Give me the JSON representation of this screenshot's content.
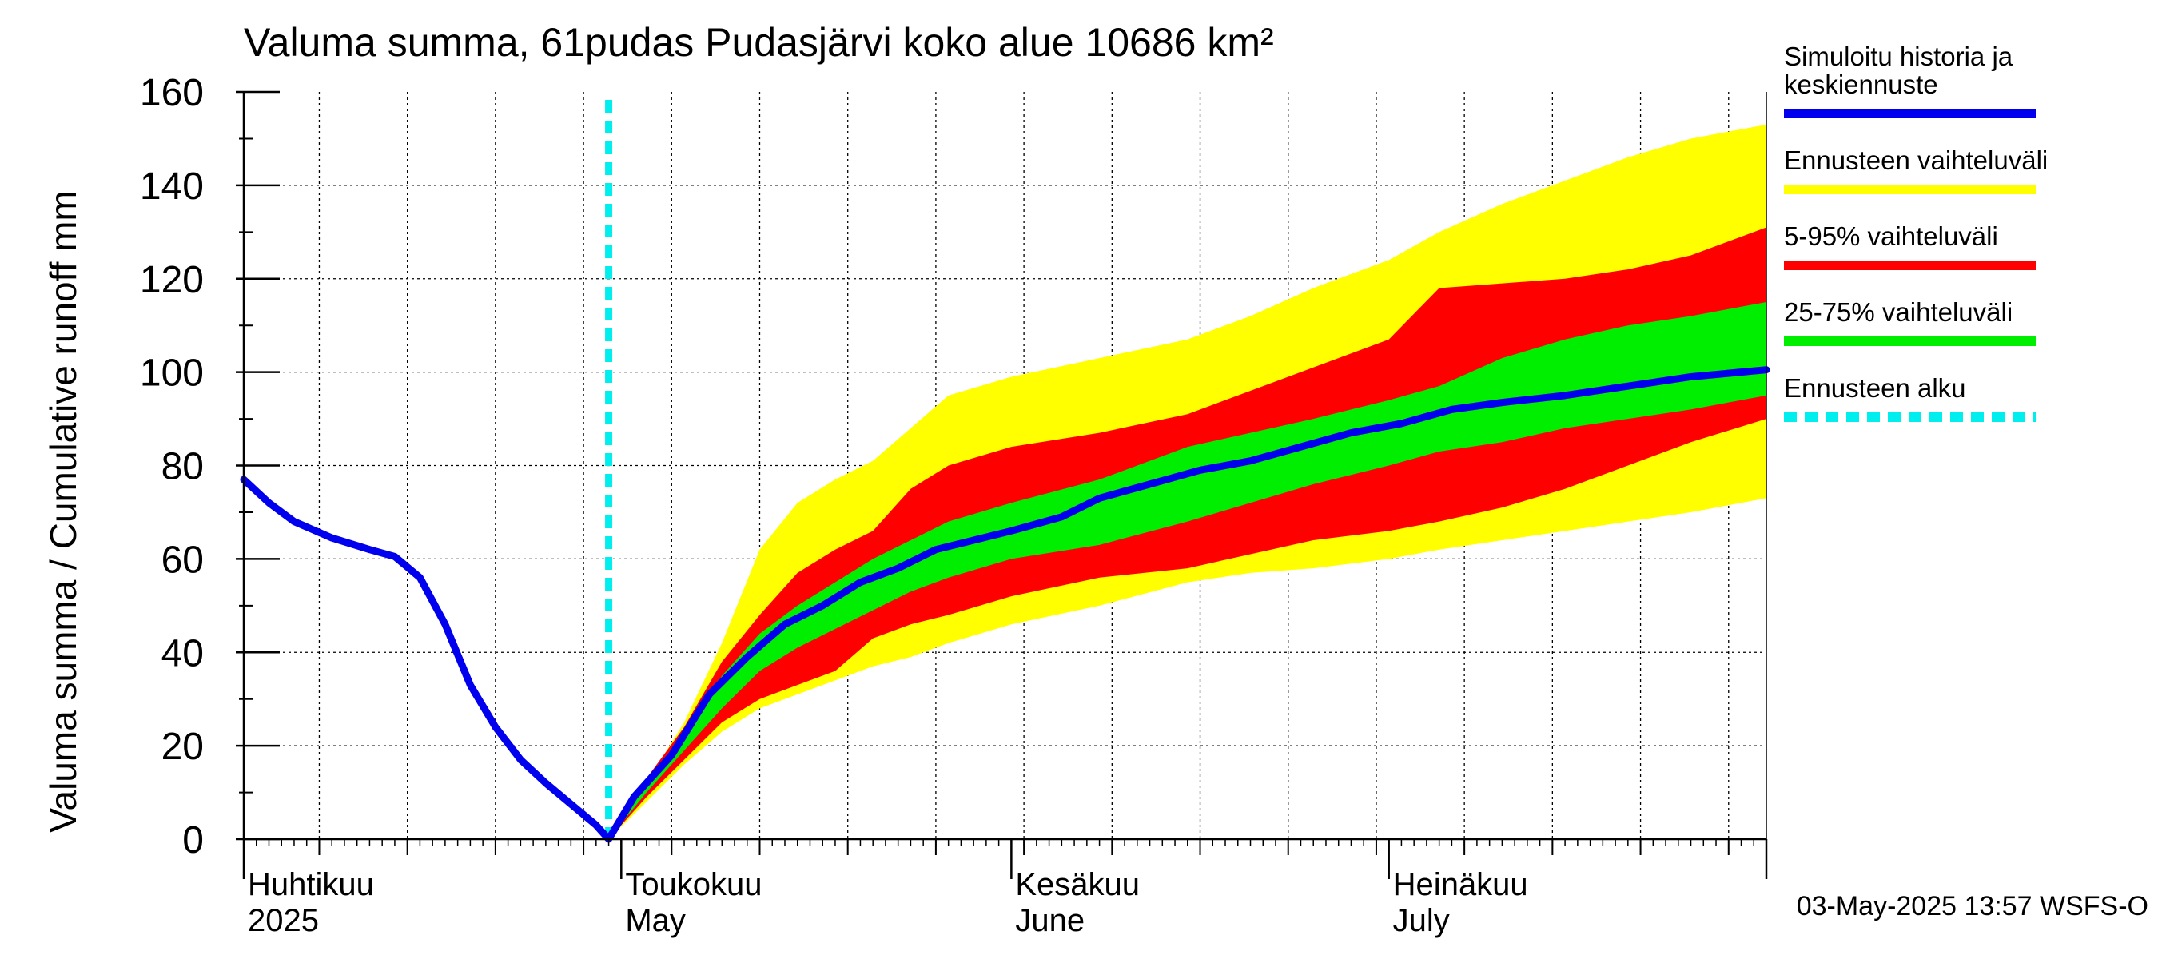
{
  "chart_data": {
    "type": "area",
    "title": "Valuma summa, 61pudas Pudasjärvi koko alue 10686 km²",
    "ylabel": "Valuma summa / Cumulative runoff    mm",
    "ylim": [
      0,
      160
    ],
    "xlim": [
      "2025-04-01",
      "2025-07-31"
    ],
    "y_ticks": [
      0,
      20,
      40,
      60,
      80,
      100,
      120,
      140,
      160
    ],
    "month_ticks": [
      {
        "date": "2025-04-01",
        "fi": "Huhtikuu",
        "en": "2025"
      },
      {
        "date": "2025-05-01",
        "fi": "Toukokuu",
        "en": "May"
      },
      {
        "date": "2025-06-01",
        "fi": "Kesäkuu",
        "en": "June"
      },
      {
        "date": "2025-07-01",
        "fi": "Heinäkuu",
        "en": "July"
      }
    ],
    "grid": true,
    "legend_position": "right",
    "legend": [
      {
        "label": "Simuloitu historia ja keskiennuste",
        "color": "#0000ee",
        "style": "solid"
      },
      {
        "label": "Ennusteen vaihteluväli",
        "color": "#ffff00",
        "style": "solid"
      },
      {
        "label": "5-95% vaihteluväli",
        "color": "#ff0000",
        "style": "solid"
      },
      {
        "label": "25-75% vaihteluväli",
        "color": "#00ee00",
        "style": "solid"
      },
      {
        "label": "Ennusteen alku",
        "color": "#00eeee",
        "style": "dashed"
      }
    ],
    "forecast_start": "2025-04-30",
    "timestamp": "03-May-2025 13:57 WSFS-O",
    "history": [
      [
        "2025-04-01",
        77
      ],
      [
        "2025-04-03",
        72
      ],
      [
        "2025-04-05",
        68
      ],
      [
        "2025-04-08",
        64.5
      ],
      [
        "2025-04-11",
        62
      ],
      [
        "2025-04-13",
        60.5
      ],
      [
        "2025-04-15",
        56
      ],
      [
        "2025-04-17",
        46
      ],
      [
        "2025-04-19",
        33
      ],
      [
        "2025-04-21",
        24
      ],
      [
        "2025-04-23",
        17
      ],
      [
        "2025-04-25",
        12
      ],
      [
        "2025-04-27",
        7.5
      ],
      [
        "2025-04-29",
        3
      ],
      [
        "2025-04-30",
        0
      ]
    ],
    "median": [
      [
        "2025-04-30",
        0
      ],
      [
        "2025-05-02",
        9
      ],
      [
        "2025-05-05",
        18
      ],
      [
        "2025-05-08",
        31
      ],
      [
        "2025-05-11",
        39
      ],
      [
        "2025-05-14",
        46
      ],
      [
        "2025-05-17",
        50
      ],
      [
        "2025-05-20",
        55
      ],
      [
        "2025-05-23",
        58
      ],
      [
        "2025-05-26",
        62
      ],
      [
        "2025-05-29",
        64
      ],
      [
        "2025-06-01",
        66
      ],
      [
        "2025-06-05",
        69
      ],
      [
        "2025-06-08",
        73
      ],
      [
        "2025-06-12",
        76
      ],
      [
        "2025-06-16",
        79
      ],
      [
        "2025-06-20",
        81
      ],
      [
        "2025-06-24",
        84
      ],
      [
        "2025-06-28",
        87
      ],
      [
        "2025-07-02",
        89
      ],
      [
        "2025-07-06",
        92
      ],
      [
        "2025-07-10",
        93.5
      ],
      [
        "2025-07-15",
        95
      ],
      [
        "2025-07-20",
        97
      ],
      [
        "2025-07-25",
        99
      ],
      [
        "2025-07-31",
        100.5
      ]
    ],
    "bands": {
      "full_upper": [
        [
          "2025-04-30",
          0
        ],
        [
          "2025-05-03",
          12
        ],
        [
          "2025-05-06",
          25
        ],
        [
          "2025-05-09",
          42
        ],
        [
          "2025-05-12",
          62
        ],
        [
          "2025-05-15",
          72
        ],
        [
          "2025-05-18",
          77
        ],
        [
          "2025-05-21",
          81
        ],
        [
          "2025-05-24",
          88
        ],
        [
          "2025-05-27",
          95
        ],
        [
          "2025-06-01",
          99
        ],
        [
          "2025-06-08",
          103
        ],
        [
          "2025-06-15",
          107
        ],
        [
          "2025-06-20",
          112
        ],
        [
          "2025-06-25",
          118
        ],
        [
          "2025-07-01",
          124
        ],
        [
          "2025-07-05",
          130
        ],
        [
          "2025-07-10",
          136
        ],
        [
          "2025-07-15",
          141
        ],
        [
          "2025-07-20",
          146
        ],
        [
          "2025-07-25",
          150
        ],
        [
          "2025-07-31",
          153
        ]
      ],
      "p95": [
        [
          "2025-04-30",
          0
        ],
        [
          "2025-05-03",
          13
        ],
        [
          "2025-05-06",
          24
        ],
        [
          "2025-05-09",
          38
        ],
        [
          "2025-05-12",
          48
        ],
        [
          "2025-05-15",
          57
        ],
        [
          "2025-05-18",
          62
        ],
        [
          "2025-05-21",
          66
        ],
        [
          "2025-05-24",
          75
        ],
        [
          "2025-05-27",
          80
        ],
        [
          "2025-06-01",
          84
        ],
        [
          "2025-06-08",
          87
        ],
        [
          "2025-06-15",
          91
        ],
        [
          "2025-06-20",
          96
        ],
        [
          "2025-06-25",
          101
        ],
        [
          "2025-07-01",
          107
        ],
        [
          "2025-07-05",
          118
        ],
        [
          "2025-07-10",
          119
        ],
        [
          "2025-07-15",
          120
        ],
        [
          "2025-07-20",
          122
        ],
        [
          "2025-07-25",
          125
        ],
        [
          "2025-07-31",
          131
        ]
      ],
      "p75": [
        [
          "2025-04-30",
          0
        ],
        [
          "2025-05-03",
          12
        ],
        [
          "2025-05-06",
          22
        ],
        [
          "2025-05-09",
          35
        ],
        [
          "2025-05-12",
          44
        ],
        [
          "2025-05-15",
          50
        ],
        [
          "2025-05-18",
          55
        ],
        [
          "2025-05-21",
          60
        ],
        [
          "2025-05-24",
          64
        ],
        [
          "2025-05-27",
          68
        ],
        [
          "2025-06-01",
          72
        ],
        [
          "2025-06-08",
          77
        ],
        [
          "2025-06-15",
          84
        ],
        [
          "2025-06-20",
          87
        ],
        [
          "2025-06-25",
          90
        ],
        [
          "2025-07-01",
          94
        ],
        [
          "2025-07-05",
          97
        ],
        [
          "2025-07-10",
          103
        ],
        [
          "2025-07-15",
          107
        ],
        [
          "2025-07-20",
          110
        ],
        [
          "2025-07-25",
          112
        ],
        [
          "2025-07-31",
          115
        ]
      ],
      "p25": [
        [
          "2025-04-30",
          0
        ],
        [
          "2025-05-03",
          10
        ],
        [
          "2025-05-06",
          19
        ],
        [
          "2025-05-09",
          28
        ],
        [
          "2025-05-12",
          36
        ],
        [
          "2025-05-15",
          41
        ],
        [
          "2025-05-18",
          45
        ],
        [
          "2025-05-21",
          49
        ],
        [
          "2025-05-24",
          53
        ],
        [
          "2025-05-27",
          56
        ],
        [
          "2025-06-01",
          60
        ],
        [
          "2025-06-08",
          63
        ],
        [
          "2025-06-15",
          68
        ],
        [
          "2025-06-20",
          72
        ],
        [
          "2025-06-25",
          76
        ],
        [
          "2025-07-01",
          80
        ],
        [
          "2025-07-05",
          83
        ],
        [
          "2025-07-10",
          85
        ],
        [
          "2025-07-15",
          88
        ],
        [
          "2025-07-20",
          90
        ],
        [
          "2025-07-25",
          92
        ],
        [
          "2025-07-31",
          95
        ]
      ],
      "p5": [
        [
          "2025-04-30",
          0
        ],
        [
          "2025-05-03",
          9
        ],
        [
          "2025-05-06",
          17
        ],
        [
          "2025-05-09",
          25
        ],
        [
          "2025-05-12",
          30
        ],
        [
          "2025-05-15",
          33
        ],
        [
          "2025-05-18",
          36
        ],
        [
          "2025-05-21",
          43
        ],
        [
          "2025-05-24",
          46
        ],
        [
          "2025-05-27",
          48
        ],
        [
          "2025-06-01",
          52
        ],
        [
          "2025-06-08",
          56
        ],
        [
          "2025-06-15",
          58
        ],
        [
          "2025-06-20",
          61
        ],
        [
          "2025-06-25",
          64
        ],
        [
          "2025-07-01",
          66
        ],
        [
          "2025-07-05",
          68
        ],
        [
          "2025-07-10",
          71
        ],
        [
          "2025-07-15",
          75
        ],
        [
          "2025-07-20",
          80
        ],
        [
          "2025-07-25",
          85
        ],
        [
          "2025-07-31",
          90
        ]
      ],
      "full_lower": [
        [
          "2025-04-30",
          0
        ],
        [
          "2025-05-03",
          8
        ],
        [
          "2025-05-06",
          16
        ],
        [
          "2025-05-09",
          23
        ],
        [
          "2025-05-12",
          28
        ],
        [
          "2025-05-15",
          31
        ],
        [
          "2025-05-18",
          34
        ],
        [
          "2025-05-21",
          37
        ],
        [
          "2025-05-24",
          39
        ],
        [
          "2025-05-27",
          42
        ],
        [
          "2025-06-01",
          46
        ],
        [
          "2025-06-08",
          50
        ],
        [
          "2025-06-15",
          55
        ],
        [
          "2025-06-20",
          57
        ],
        [
          "2025-06-25",
          58
        ],
        [
          "2025-07-01",
          60
        ],
        [
          "2025-07-05",
          62
        ],
        [
          "2025-07-10",
          64
        ],
        [
          "2025-07-15",
          66
        ],
        [
          "2025-07-20",
          68
        ],
        [
          "2025-07-25",
          70
        ],
        [
          "2025-07-31",
          73
        ]
      ]
    }
  }
}
